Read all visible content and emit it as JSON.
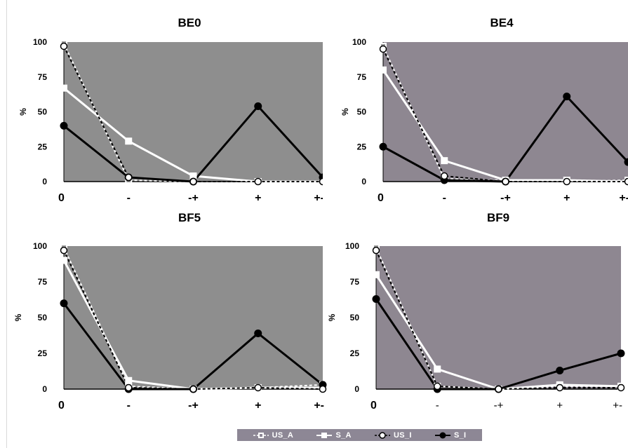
{
  "legend": {
    "items": [
      {
        "name": "US_A",
        "marker": "open-square",
        "line": "dashed",
        "color": "#ffffff"
      },
      {
        "name": "S_A",
        "marker": "filled-square",
        "line": "solid",
        "color": "#ffffff"
      },
      {
        "name": "US_I",
        "marker": "open-circle",
        "line": "dashed",
        "color": "#000000"
      },
      {
        "name": "S_I",
        "marker": "filled-circle",
        "line": "solid",
        "color": "#000000"
      }
    ]
  },
  "chart_data": [
    {
      "type": "line",
      "title": "BE0",
      "ylabel": "%",
      "categories": [
        "0",
        "-",
        "-+",
        "+",
        "+-"
      ],
      "ylim": [
        0,
        100
      ],
      "yticks": [
        0,
        25,
        50,
        75,
        100
      ],
      "plot_bg": "#8e8e8e",
      "grid": false,
      "series": [
        {
          "name": "US_A",
          "values": [
            99,
            1,
            0,
            0,
            0
          ]
        },
        {
          "name": "S_A",
          "values": [
            67,
            29,
            4,
            0,
            0
          ]
        },
        {
          "name": "US_I",
          "values": [
            97,
            3,
            0,
            0,
            0
          ]
        },
        {
          "name": "S_I",
          "values": [
            40,
            3,
            0,
            54,
            3
          ]
        }
      ]
    },
    {
      "type": "line",
      "title": "BE4",
      "ylabel": "%",
      "categories": [
        "0",
        "-",
        "-+",
        "+",
        "+-"
      ],
      "ylim": [
        0,
        100
      ],
      "yticks": [
        0,
        25,
        50,
        75,
        100
      ],
      "plot_bg": "#8e8791",
      "grid": false,
      "series": [
        {
          "name": "US_A",
          "values": [
            97,
            2,
            1,
            0,
            1
          ]
        },
        {
          "name": "S_A",
          "values": [
            80,
            15,
            1,
            1,
            0
          ]
        },
        {
          "name": "US_I",
          "values": [
            95,
            4,
            0,
            0,
            0
          ]
        },
        {
          "name": "S_I",
          "values": [
            25,
            1,
            0,
            61,
            14
          ]
        }
      ]
    },
    {
      "type": "line",
      "title": "BF5",
      "ylabel": "%",
      "categories": [
        "0",
        "-",
        "-+",
        "+",
        "+-"
      ],
      "ylim": [
        0,
        100
      ],
      "yticks": [
        0,
        25,
        50,
        75,
        100
      ],
      "plot_bg": "#8e8e8e",
      "grid": false,
      "series": [
        {
          "name": "US_A",
          "values": [
            99,
            2,
            0,
            1,
            3
          ]
        },
        {
          "name": "S_A",
          "values": [
            90,
            6,
            0,
            1,
            1
          ]
        },
        {
          "name": "US_I",
          "values": [
            97,
            1,
            0,
            1,
            0
          ]
        },
        {
          "name": "S_I",
          "values": [
            60,
            0,
            0,
            39,
            3
          ]
        }
      ]
    },
    {
      "type": "line",
      "title": "BF9",
      "ylabel": "%",
      "categories": [
        "0",
        "-",
        "-+",
        "+",
        "+-"
      ],
      "ylim": [
        0,
        100
      ],
      "yticks": [
        0,
        25,
        50,
        75,
        100
      ],
      "plot_bg": "#8e8791",
      "grid": false,
      "series": [
        {
          "name": "US_A",
          "values": [
            99,
            2,
            0,
            2,
            2
          ]
        },
        {
          "name": "S_A",
          "values": [
            80,
            14,
            0,
            3,
            2
          ]
        },
        {
          "name": "US_I",
          "values": [
            97,
            2,
            0,
            1,
            1
          ]
        },
        {
          "name": "S_I",
          "values": [
            63,
            0,
            0,
            13,
            25
          ]
        }
      ]
    }
  ]
}
